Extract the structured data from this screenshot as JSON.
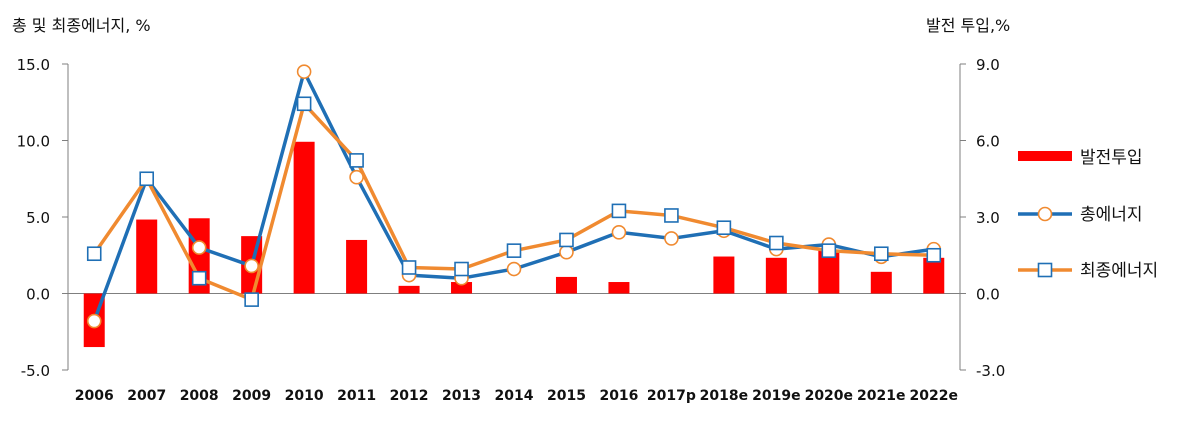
{
  "chart_data": {
    "type": "bar+line",
    "y_left_label": "총 및 최종에너지, %",
    "y_right_label": "발전 투입,%",
    "y_left_range": [
      -5.0,
      15.0
    ],
    "y_right_range": [
      -3.0,
      9.0
    ],
    "y_left_ticks": [
      "15.0",
      "10.0",
      "5.0",
      "0.0",
      "-5.0"
    ],
    "y_right_ticks": [
      "9.0",
      "6.0",
      "3.0",
      "0.0",
      "-3.0"
    ],
    "categories": [
      "2006",
      "2007",
      "2008",
      "2009",
      "2010",
      "2011",
      "2012",
      "2013",
      "2014",
      "2015",
      "2016",
      "2017p",
      "2018e",
      "2019e",
      "2020e",
      "2021e",
      "2022e"
    ],
    "series": [
      {
        "name": "발전투입",
        "type": "bar",
        "axis": "right",
        "color": "#ff0000",
        "values": [
          -2.1,
          2.9,
          2.95,
          2.25,
          5.95,
          2.1,
          0.3,
          0.45,
          0.0,
          0.65,
          0.45,
          0.0,
          1.45,
          1.4,
          1.7,
          0.85,
          1.4
        ]
      },
      {
        "name": "총에너지",
        "type": "line",
        "axis": "left",
        "color": "#1f6fb5",
        "marker": "circle",
        "values": [
          -1.8,
          7.5,
          3.0,
          1.8,
          14.5,
          7.6,
          1.2,
          1.0,
          1.6,
          2.7,
          4.0,
          3.6,
          4.1,
          2.9,
          3.2,
          2.4,
          2.9
        ]
      },
      {
        "name": "최종에너지",
        "type": "line",
        "axis": "left",
        "color": "#f08a30",
        "marker": "square",
        "values": [
          2.6,
          7.5,
          1.0,
          -0.4,
          12.4,
          8.7,
          1.7,
          1.6,
          2.8,
          3.5,
          5.4,
          5.1,
          4.3,
          3.3,
          2.8,
          2.6,
          2.5
        ]
      }
    ],
    "legend_position": "right",
    "grid": false
  }
}
